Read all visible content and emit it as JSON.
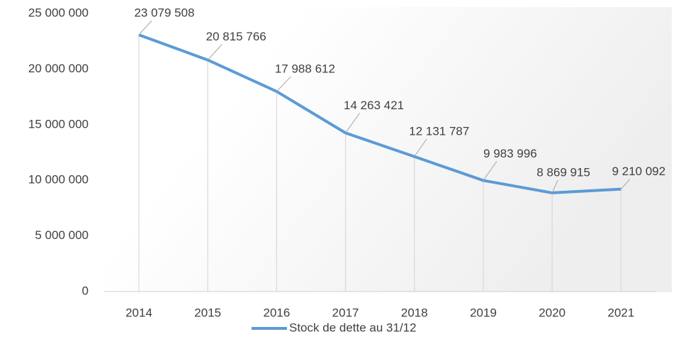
{
  "chart_data": {
    "type": "line",
    "categories": [
      "2014",
      "2015",
      "2016",
      "2017",
      "2018",
      "2019",
      "2020",
      "2021"
    ],
    "series": [
      {
        "name": "Stock de dette au 31/12",
        "color": "#5b9bd5",
        "values": [
          23079508,
          20815766,
          17988612,
          14263421,
          12131787,
          9983996,
          8869915,
          9210092
        ],
        "value_labels": [
          "23 079 508",
          "20 815 766",
          "17 988 612",
          "14 263 421",
          "12 131 787",
          "9 983 996",
          "8 869 915",
          "9 210 092"
        ]
      }
    ],
    "ylim": [
      0,
      25000000
    ],
    "yticks": [
      0,
      {
        "value": 5000000,
        "label": "5 000 000"
      },
      {
        "value": 10000000,
        "label": "10 000 000"
      },
      {
        "value": 15000000,
        "label": "15 000 000"
      },
      {
        "value": 20000000,
        "label": "20 000 000"
      },
      {
        "value": 25000000,
        "label": "25 000 000"
      }
    ],
    "drop_lines": true,
    "legend": "bottom"
  }
}
